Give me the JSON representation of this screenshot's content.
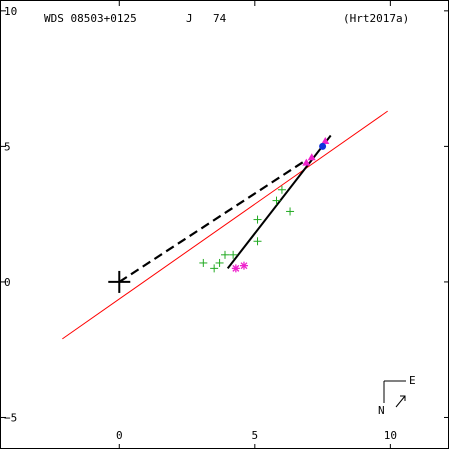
{
  "header": {
    "wds_id": "WDS 08503+0125",
    "discoverer_code": "J",
    "discoverer_number": "74",
    "reference": "(Hrt2017a)"
  },
  "compass": {
    "east_label": "E",
    "north_label": "N"
  },
  "colors": {
    "fit_line": "#ff0000",
    "observations": "#22aa22",
    "speckle": "#ee22cc",
    "last_point": "#1133dd",
    "orbit": "#000000"
  },
  "chart_data": {
    "type": "scatter",
    "title": "",
    "xlabel": "",
    "ylabel": "",
    "xlim": [
      -4.4,
      12.2
    ],
    "ylim": [
      -6.2,
      10.4
    ],
    "x_ticks": [
      0,
      5,
      10
    ],
    "x_tick_labels": [
      "0",
      "5",
      "10"
    ],
    "y_ticks": [
      10,
      5,
      0,
      -5
    ],
    "y_tick_labels": [
      "10",
      "5",
      "0",
      "−5"
    ],
    "grid": false,
    "primary": {
      "x": 0,
      "y": 0,
      "marker": "large-cross"
    },
    "series": [
      {
        "marker": "plus",
        "color_key": "observations",
        "points": [
          [
            3.1,
            0.7
          ],
          [
            3.5,
            0.5
          ],
          [
            3.7,
            0.7
          ],
          [
            3.9,
            1.0
          ],
          [
            4.2,
            1.0
          ],
          [
            5.1,
            1.5
          ],
          [
            5.1,
            2.3
          ],
          [
            5.8,
            3.0
          ],
          [
            6.0,
            3.4
          ],
          [
            6.3,
            2.6
          ]
        ]
      },
      {
        "marker": "asterisk",
        "color_key": "speckle",
        "points": [
          [
            4.3,
            0.5
          ],
          [
            4.6,
            0.6
          ]
        ]
      },
      {
        "marker": "triangle",
        "color_key": "speckle",
        "points": [
          [
            6.9,
            4.4
          ],
          [
            7.1,
            4.6
          ],
          [
            7.6,
            5.2
          ]
        ]
      },
      {
        "marker": "dot",
        "color_key": "last_point",
        "points": [
          [
            7.5,
            5.0
          ]
        ]
      }
    ],
    "fit_line": {
      "from": [
        -2.1,
        -2.1
      ],
      "to": [
        9.9,
        6.3
      ]
    },
    "orbit_arc": {
      "from": [
        4.0,
        0.5
      ],
      "to": [
        7.8,
        5.4
      ]
    },
    "dashed_line": {
      "from": [
        0,
        0
      ],
      "to": [
        6.9,
        4.5
      ]
    }
  }
}
